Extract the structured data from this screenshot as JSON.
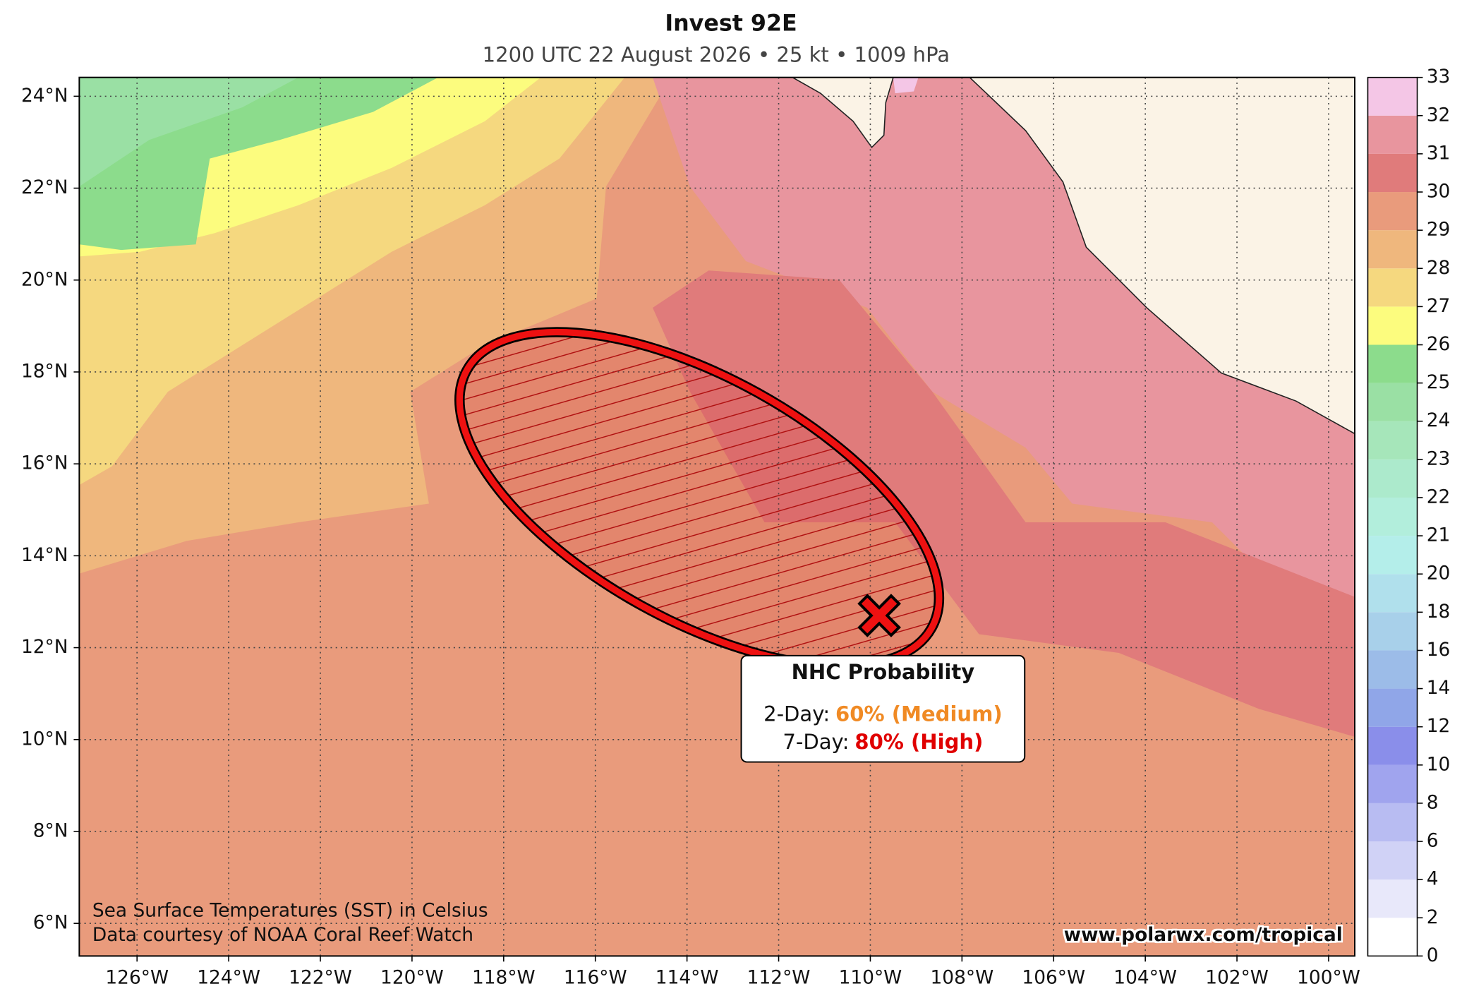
{
  "title": "Invest 92E",
  "subtitle": "1200 UTC 22 August 2026 • 25 kt • 1009 hPa",
  "map": {
    "xlim": [
      -127.26,
      -99.43
    ],
    "ylim": [
      5.29,
      24.41
    ],
    "xticks": [
      {
        "value": -126,
        "label": "126°W"
      },
      {
        "value": -124,
        "label": "124°W"
      },
      {
        "value": -122,
        "label": "122°W"
      },
      {
        "value": -120,
        "label": "120°W"
      },
      {
        "value": -118,
        "label": "118°W"
      },
      {
        "value": -116,
        "label": "116°W"
      },
      {
        "value": -114,
        "label": "114°W"
      },
      {
        "value": -112,
        "label": "112°W"
      },
      {
        "value": -110,
        "label": "110°W"
      },
      {
        "value": -108,
        "label": "108°W"
      },
      {
        "value": -106,
        "label": "106°W"
      },
      {
        "value": -104,
        "label": "104°W"
      },
      {
        "value": -102,
        "label": "102°W"
      },
      {
        "value": -100,
        "label": "100°W"
      }
    ],
    "yticks": [
      {
        "value": 6,
        "label": "6°N"
      },
      {
        "value": 8,
        "label": "8°N"
      },
      {
        "value": 10,
        "label": "10°N"
      },
      {
        "value": 12,
        "label": "12°N"
      },
      {
        "value": 14,
        "label": "14°N"
      },
      {
        "value": 16,
        "label": "16°N"
      },
      {
        "value": 18,
        "label": "18°N"
      },
      {
        "value": 20,
        "label": "20°N"
      },
      {
        "value": 22,
        "label": "22°N"
      },
      {
        "value": 24,
        "label": "24°N"
      }
    ],
    "grid": true
  },
  "colorbar": {
    "levels": [
      0,
      2,
      4,
      6,
      8,
      10,
      12,
      14,
      16,
      18,
      20,
      21,
      22,
      23,
      24,
      25,
      26,
      27,
      28,
      29,
      30,
      31,
      32,
      33
    ],
    "colors": [
      "#ffffff",
      "#e8e8fa",
      "#d0d2f6",
      "#b8bcf2",
      "#a0a4ee",
      "#8a8eea",
      "#90a6e8",
      "#9cbce8",
      "#a8d0ea",
      "#b0e0ec",
      "#b4eeea",
      "#b2eedc",
      "#aceacc",
      "#a6e6ba",
      "#9ae0a4",
      "#8cdc8c",
      "#fcfc7e",
      "#f5d87f",
      "#efb77d",
      "#e99b7c",
      "#e07b7b",
      "#e8959e",
      "#f4c6e6"
    ]
  },
  "probability_box": {
    "title": "NHC Probability",
    "rows": [
      {
        "label": "2-Day:",
        "value": "60% (Medium)",
        "color": "#f08a24"
      },
      {
        "label": "7-Day:",
        "value": "80% (High)",
        "color": "#e00000"
      }
    ]
  },
  "credits": [
    "Sea Surface Temperatures (SST) in Celsius",
    "Data courtesy of NOAA Coral Reef Watch"
  ],
  "website": "www.polarwx.com/tropical"
}
